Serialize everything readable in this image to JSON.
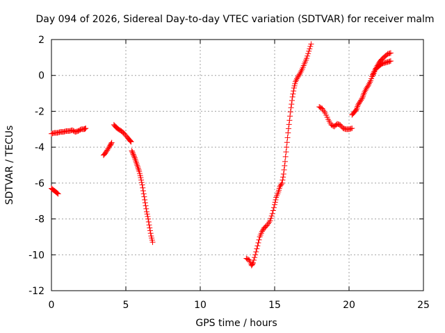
{
  "chart_data": {
    "type": "scatter",
    "title": "Day 094 of 2026, Sidereal Day-to-day VTEC variation (SDTVAR) for receiver malm",
    "xlabel": "GPS time / hours",
    "ylabel": "SDTVAR / TECUs",
    "xlim": [
      0,
      25
    ],
    "ylim": [
      -12,
      2
    ],
    "xticks": [
      "0",
      "5",
      "10",
      "15",
      "20",
      "25"
    ],
    "yticks": [
      "2",
      "0",
      "-2",
      "-4",
      "-6",
      "-8",
      "-10",
      "-12"
    ],
    "grid": true,
    "marker": "+",
    "color": "#ff0000",
    "series": [
      {
        "segments": [
          [
            [
              0.0,
              -3.25
            ],
            [
              0.2,
              -3.2
            ],
            [
              0.4,
              -3.2
            ],
            [
              0.6,
              -3.15
            ],
            [
              0.8,
              -3.15
            ],
            [
              1.0,
              -3.1
            ],
            [
              1.2,
              -3.1
            ],
            [
              1.4,
              -3.05
            ],
            [
              1.6,
              -3.15
            ],
            [
              1.8,
              -3.1
            ],
            [
              2.0,
              -3.0
            ],
            [
              2.2,
              -3.0
            ],
            [
              2.3,
              -2.95
            ]
          ],
          [
            [
              0.0,
              -6.3
            ],
            [
              0.15,
              -6.4
            ],
            [
              0.3,
              -6.5
            ],
            [
              0.45,
              -6.6
            ]
          ],
          [
            [
              3.5,
              -4.45
            ],
            [
              3.65,
              -4.3
            ],
            [
              3.8,
              -4.1
            ],
            [
              3.95,
              -3.9
            ],
            [
              4.05,
              -3.75
            ]
          ],
          [
            [
              4.2,
              -2.75
            ],
            [
              4.35,
              -2.9
            ],
            [
              4.5,
              -3.0
            ],
            [
              4.7,
              -3.1
            ],
            [
              4.9,
              -3.25
            ],
            [
              5.1,
              -3.45
            ],
            [
              5.25,
              -3.6
            ],
            [
              5.35,
              -3.7
            ]
          ],
          [
            [
              5.4,
              -4.2
            ],
            [
              5.5,
              -4.4
            ],
            [
              5.6,
              -4.6
            ],
            [
              5.7,
              -4.85
            ],
            [
              5.8,
              -5.1
            ],
            [
              5.9,
              -5.35
            ],
            [
              6.0,
              -5.7
            ],
            [
              6.1,
              -6.1
            ],
            [
              6.2,
              -6.6
            ],
            [
              6.3,
              -7.1
            ],
            [
              6.4,
              -7.6
            ],
            [
              6.5,
              -8.0
            ],
            [
              6.6,
              -8.5
            ],
            [
              6.7,
              -8.95
            ],
            [
              6.8,
              -9.3
            ]
          ],
          [
            [
              13.1,
              -10.2
            ],
            [
              13.3,
              -10.3
            ],
            [
              13.45,
              -10.6
            ],
            [
              13.55,
              -10.45
            ],
            [
              13.7,
              -10.0
            ],
            [
              13.85,
              -9.5
            ],
            [
              14.0,
              -9.0
            ],
            [
              14.15,
              -8.7
            ],
            [
              14.3,
              -8.5
            ],
            [
              14.5,
              -8.35
            ],
            [
              14.7,
              -8.1
            ],
            [
              14.85,
              -7.7
            ],
            [
              15.0,
              -7.2
            ],
            [
              15.1,
              -6.8
            ],
            [
              15.25,
              -6.5
            ],
            [
              15.35,
              -6.2
            ],
            [
              15.5,
              -6.0
            ],
            [
              15.6,
              -5.5
            ],
            [
              15.7,
              -4.8
            ],
            [
              15.8,
              -4.0
            ],
            [
              15.9,
              -3.2
            ],
            [
              16.0,
              -2.5
            ],
            [
              16.1,
              -1.8
            ],
            [
              16.2,
              -1.2
            ],
            [
              16.3,
              -0.7
            ],
            [
              16.4,
              -0.35
            ],
            [
              16.55,
              -0.1
            ],
            [
              16.7,
              0.1
            ],
            [
              16.85,
              0.35
            ],
            [
              17.0,
              0.65
            ],
            [
              17.15,
              0.95
            ],
            [
              17.3,
              1.35
            ],
            [
              17.45,
              1.75
            ]
          ],
          [
            [
              18.0,
              -1.75
            ],
            [
              18.2,
              -1.85
            ],
            [
              18.4,
              -2.1
            ],
            [
              18.6,
              -2.45
            ],
            [
              18.8,
              -2.75
            ],
            [
              19.0,
              -2.85
            ],
            [
              19.2,
              -2.7
            ],
            [
              19.4,
              -2.75
            ],
            [
              19.6,
              -2.95
            ],
            [
              19.8,
              -3.0
            ],
            [
              20.0,
              -3.0
            ],
            [
              20.2,
              -2.95
            ]
          ],
          [
            [
              20.2,
              -2.2
            ],
            [
              20.35,
              -2.05
            ],
            [
              20.5,
              -1.9
            ],
            [
              20.6,
              -1.65
            ],
            [
              20.75,
              -1.45
            ],
            [
              20.9,
              -1.25
            ],
            [
              21.0,
              -1.0
            ],
            [
              21.15,
              -0.75
            ],
            [
              21.3,
              -0.55
            ],
            [
              21.45,
              -0.3
            ],
            [
              21.6,
              0.05
            ],
            [
              21.75,
              0.3
            ],
            [
              21.9,
              0.45
            ],
            [
              22.05,
              0.55
            ],
            [
              22.2,
              0.65
            ],
            [
              22.4,
              0.7
            ],
            [
              22.6,
              0.75
            ],
            [
              22.8,
              0.8
            ]
          ],
          [
            [
              21.6,
              0.0
            ],
            [
              21.75,
              0.3
            ],
            [
              21.9,
              0.55
            ],
            [
              22.05,
              0.75
            ],
            [
              22.2,
              0.9
            ],
            [
              22.4,
              1.05
            ],
            [
              22.6,
              1.2
            ],
            [
              22.8,
              1.25
            ]
          ]
        ]
      }
    ]
  }
}
